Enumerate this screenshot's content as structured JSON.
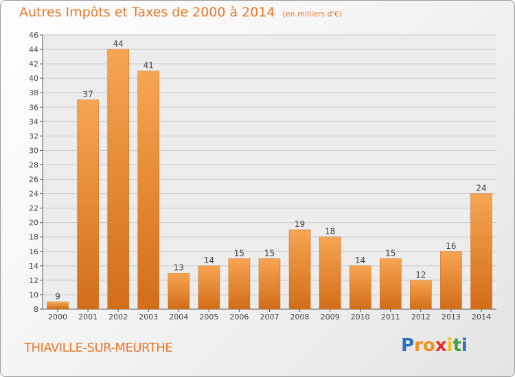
{
  "chart_data": {
    "type": "bar",
    "title": "Autres Impôts et Taxes de 2000 à 2014",
    "subtitle": "(en milliers d'€)",
    "categories": [
      "2000",
      "2001",
      "2002",
      "2003",
      "2004",
      "2005",
      "2006",
      "2007",
      "2008",
      "2009",
      "2010",
      "2011",
      "2012",
      "2013",
      "2014"
    ],
    "values": [
      9,
      37,
      44,
      41,
      13,
      14,
      15,
      15,
      19,
      18,
      14,
      15,
      12,
      16,
      24
    ],
    "ylim": [
      8,
      46
    ],
    "yticks": [
      8,
      10,
      12,
      14,
      16,
      18,
      20,
      22,
      24,
      26,
      28,
      30,
      32,
      34,
      36,
      38,
      40,
      42,
      44,
      46
    ],
    "grid": true,
    "bar_color": "#f0902e"
  },
  "commune": "THIAVILLE-SUR-MEURTHE",
  "logo": {
    "letters": [
      "P",
      "r",
      "o",
      "x",
      "i",
      "t",
      "i"
    ],
    "colors": [
      "#2d6fc0",
      "#f09020",
      "#f09020",
      "#e03030",
      "#f0c020",
      "#40a040",
      "#2d6fc0"
    ]
  },
  "colors": {
    "accent": "#e8782a",
    "grid": "#c8c8c8",
    "axis": "#555555"
  }
}
